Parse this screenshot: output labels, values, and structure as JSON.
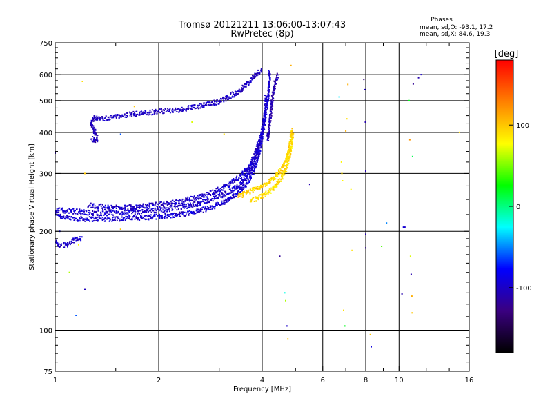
{
  "chart_data": {
    "type": "scatter",
    "title": "Tromsø 20121211 13:06:00-13:07:43",
    "subtitle": "RwPretec (8p)",
    "xlabel": "Frequency [MHz]",
    "ylabel": "Stationary phase Virtual Height [km]",
    "x_scale": "log2",
    "y_scale": "log",
    "xlim": [
      1,
      16
    ],
    "ylim": [
      75,
      750
    ],
    "x_ticks": [
      1,
      2,
      4,
      6,
      8,
      10,
      16
    ],
    "x_tick_labels": [
      "1",
      "2",
      "4",
      "6",
      "8",
      "10",
      "16"
    ],
    "y_ticks": [
      75,
      100,
      200,
      300,
      400,
      500,
      600,
      750
    ],
    "y_tick_labels": [
      "75",
      "100",
      "200",
      "300",
      "400",
      "500",
      "600",
      "750"
    ],
    "grid_x": [
      2,
      4,
      6,
      8,
      10
    ],
    "grid_y": [
      100,
      200,
      300,
      400,
      500,
      600
    ],
    "stats_header": "Phases",
    "stats": [
      "mean, sd,O: -93.1, 17.2",
      "mean, sd,X:  84.6, 19.3"
    ],
    "colorbar": {
      "label": "[deg]",
      "range": [
        -180,
        180
      ],
      "ticks": [
        100,
        0,
        -100
      ],
      "tick_labels": [
        "100",
        "0",
        "-100"
      ],
      "stops": [
        "#ff0000",
        "#ff8000",
        "#ffff00",
        "#00ff00",
        "#00ffff",
        "#0000ff",
        "#3a0080",
        "#000000"
      ]
    },
    "traces": [
      {
        "name_hint": "O",
        "phase": -95,
        "spread": 15,
        "points": [
          [
            1.0,
            228
          ],
          [
            1.05,
            221
          ],
          [
            1.1,
            219
          ],
          [
            1.2,
            218
          ],
          [
            1.3,
            218
          ],
          [
            1.45,
            218
          ],
          [
            1.6,
            219
          ],
          [
            1.8,
            220
          ],
          [
            2.0,
            222
          ],
          [
            2.2,
            224
          ],
          [
            2.5,
            228
          ],
          [
            2.8,
            235
          ],
          [
            3.1,
            245
          ],
          [
            3.3,
            255
          ],
          [
            3.5,
            270
          ],
          [
            3.7,
            290
          ],
          [
            3.85,
            320
          ],
          [
            3.95,
            360
          ],
          [
            4.05,
            420
          ],
          [
            4.15,
            500
          ],
          [
            4.2,
            570
          ],
          [
            4.2,
            620
          ]
        ]
      },
      {
        "name_hint": "O",
        "phase": -98,
        "spread": 12,
        "points": [
          [
            1.0,
            232
          ],
          [
            1.15,
            230
          ],
          [
            1.3,
            227
          ],
          [
            1.5,
            227
          ],
          [
            1.75,
            229
          ],
          [
            2.0,
            232
          ],
          [
            2.3,
            236
          ],
          [
            2.6,
            243
          ],
          [
            2.9,
            252
          ],
          [
            3.2,
            263
          ],
          [
            3.45,
            277
          ],
          [
            3.65,
            298
          ],
          [
            3.8,
            325
          ],
          [
            3.9,
            360
          ],
          [
            4.0,
            405
          ],
          [
            4.08,
            470
          ],
          [
            4.1,
            520
          ]
        ]
      },
      {
        "name_hint": "O",
        "phase": -100,
        "spread": 14,
        "points": [
          [
            1.25,
            240
          ],
          [
            1.45,
            236
          ],
          [
            1.7,
            238
          ],
          [
            2.0,
            241
          ],
          [
            2.3,
            246
          ],
          [
            2.6,
            254
          ],
          [
            2.9,
            264
          ],
          [
            3.2,
            277
          ],
          [
            3.45,
            293
          ],
          [
            3.65,
            312
          ],
          [
            3.8,
            340
          ],
          [
            3.9,
            372
          ]
        ]
      },
      {
        "name_hint": "O",
        "phase": -102,
        "spread": 10,
        "points": [
          [
            1.3,
            438
          ],
          [
            1.45,
            444
          ],
          [
            1.6,
            452
          ],
          [
            1.8,
            458
          ],
          [
            2.0,
            463
          ],
          [
            2.25,
            467
          ],
          [
            2.5,
            476
          ],
          [
            2.8,
            487
          ],
          [
            3.0,
            497
          ],
          [
            3.2,
            513
          ],
          [
            3.4,
            532
          ],
          [
            3.55,
            553
          ],
          [
            3.7,
            575
          ],
          [
            3.85,
            600
          ],
          [
            4.0,
            625
          ]
        ]
      },
      {
        "name_hint": "X",
        "phase": 95,
        "spread": 15,
        "points": [
          [
            3.4,
            255
          ],
          [
            3.6,
            262
          ],
          [
            3.85,
            270
          ],
          [
            4.1,
            280
          ],
          [
            4.35,
            292
          ],
          [
            4.55,
            308
          ],
          [
            4.7,
            330
          ],
          [
            4.8,
            360
          ],
          [
            4.85,
            390
          ],
          [
            4.87,
            410
          ]
        ]
      },
      {
        "name_hint": "X",
        "phase": 90,
        "spread": 14,
        "points": [
          [
            3.7,
            248
          ],
          [
            3.95,
            254
          ],
          [
            4.2,
            264
          ],
          [
            4.4,
            276
          ],
          [
            4.55,
            290
          ],
          [
            4.7,
            310
          ],
          [
            4.8,
            335
          ],
          [
            4.88,
            370
          ],
          [
            4.92,
            400
          ]
        ]
      },
      {
        "name_hint": "O",
        "phase": -100,
        "spread": 12,
        "points": [
          [
            1.0,
            185
          ],
          [
            1.03,
            181
          ],
          [
            1.08,
            182
          ],
          [
            1.12,
            186
          ],
          [
            1.16,
            191
          ],
          [
            1.2,
            189
          ]
        ]
      },
      {
        "name_hint": "O",
        "phase": -105,
        "spread": 12,
        "points": [
          [
            1.28,
            383
          ],
          [
            1.3,
            379
          ],
          [
            1.33,
            382
          ],
          [
            1.27,
            428
          ],
          [
            1.3,
            445
          ],
          [
            1.33,
            440
          ]
        ]
      },
      {
        "name_hint": "O",
        "phase": -110,
        "spread": 15,
        "points": [
          [
            4.15,
            380
          ],
          [
            4.2,
            420
          ],
          [
            4.25,
            470
          ],
          [
            4.3,
            520
          ],
          [
            4.35,
            560
          ],
          [
            4.45,
            600
          ]
        ]
      }
    ],
    "scatter_points": [
      [
        1.0,
        346,
        -110
      ],
      [
        1.03,
        200,
        -80
      ],
      [
        1.1,
        150,
        60
      ],
      [
        1.17,
        182,
        80
      ],
      [
        1.2,
        572,
        90
      ],
      [
        1.22,
        300,
        100
      ],
      [
        1.22,
        133,
        -105
      ],
      [
        1.15,
        111,
        -60
      ],
      [
        1.55,
        395,
        -60
      ],
      [
        1.55,
        203,
        100
      ],
      [
        1.7,
        480,
        100
      ],
      [
        2.5,
        430,
        70
      ],
      [
        3.1,
        395,
        90
      ],
      [
        4.5,
        168,
        -120
      ],
      [
        4.65,
        130,
        -20
      ],
      [
        4.68,
        123,
        60
      ],
      [
        4.72,
        103,
        -100
      ],
      [
        4.75,
        94,
        100
      ],
      [
        4.85,
        640,
        110
      ],
      [
        5.5,
        278,
        -110
      ],
      [
        6.7,
        513,
        -30
      ],
      [
        6.8,
        325,
        80
      ],
      [
        6.82,
        300,
        90
      ],
      [
        6.85,
        285,
        80
      ],
      [
        6.9,
        115,
        90
      ],
      [
        6.95,
        103,
        20
      ],
      [
        7.0,
        404,
        110
      ],
      [
        7.05,
        440,
        90
      ],
      [
        7.1,
        560,
        110
      ],
      [
        7.25,
        268,
        80
      ],
      [
        7.3,
        175,
        90
      ],
      [
        7.9,
        580,
        -130
      ],
      [
        7.95,
        540,
        -100
      ],
      [
        7.98,
        430,
        -110
      ],
      [
        8.0,
        305,
        -110
      ],
      [
        8.0,
        196,
        -110
      ],
      [
        8.0,
        178,
        -120
      ],
      [
        8.25,
        97,
        100
      ],
      [
        8.3,
        89,
        -90
      ],
      [
        8.9,
        180,
        40
      ],
      [
        9.2,
        212,
        -50
      ],
      [
        10.2,
        129,
        -110
      ],
      [
        10.4,
        206,
        -100
      ],
      [
        10.7,
        500,
        20
      ],
      [
        10.75,
        380,
        120
      ],
      [
        10.8,
        168,
        70
      ],
      [
        10.85,
        148,
        -110
      ],
      [
        10.9,
        127,
        110
      ],
      [
        10.92,
        113,
        100
      ],
      [
        10.95,
        338,
        10
      ],
      [
        11.0,
        562,
        -120
      ],
      [
        11.6,
        600,
        -100
      ],
      [
        11.4,
        587,
        -110
      ],
      [
        15.0,
        400,
        90
      ],
      [
        10.3,
        206,
        -90
      ],
      [
        4.2,
        612,
        -110
      ]
    ]
  }
}
